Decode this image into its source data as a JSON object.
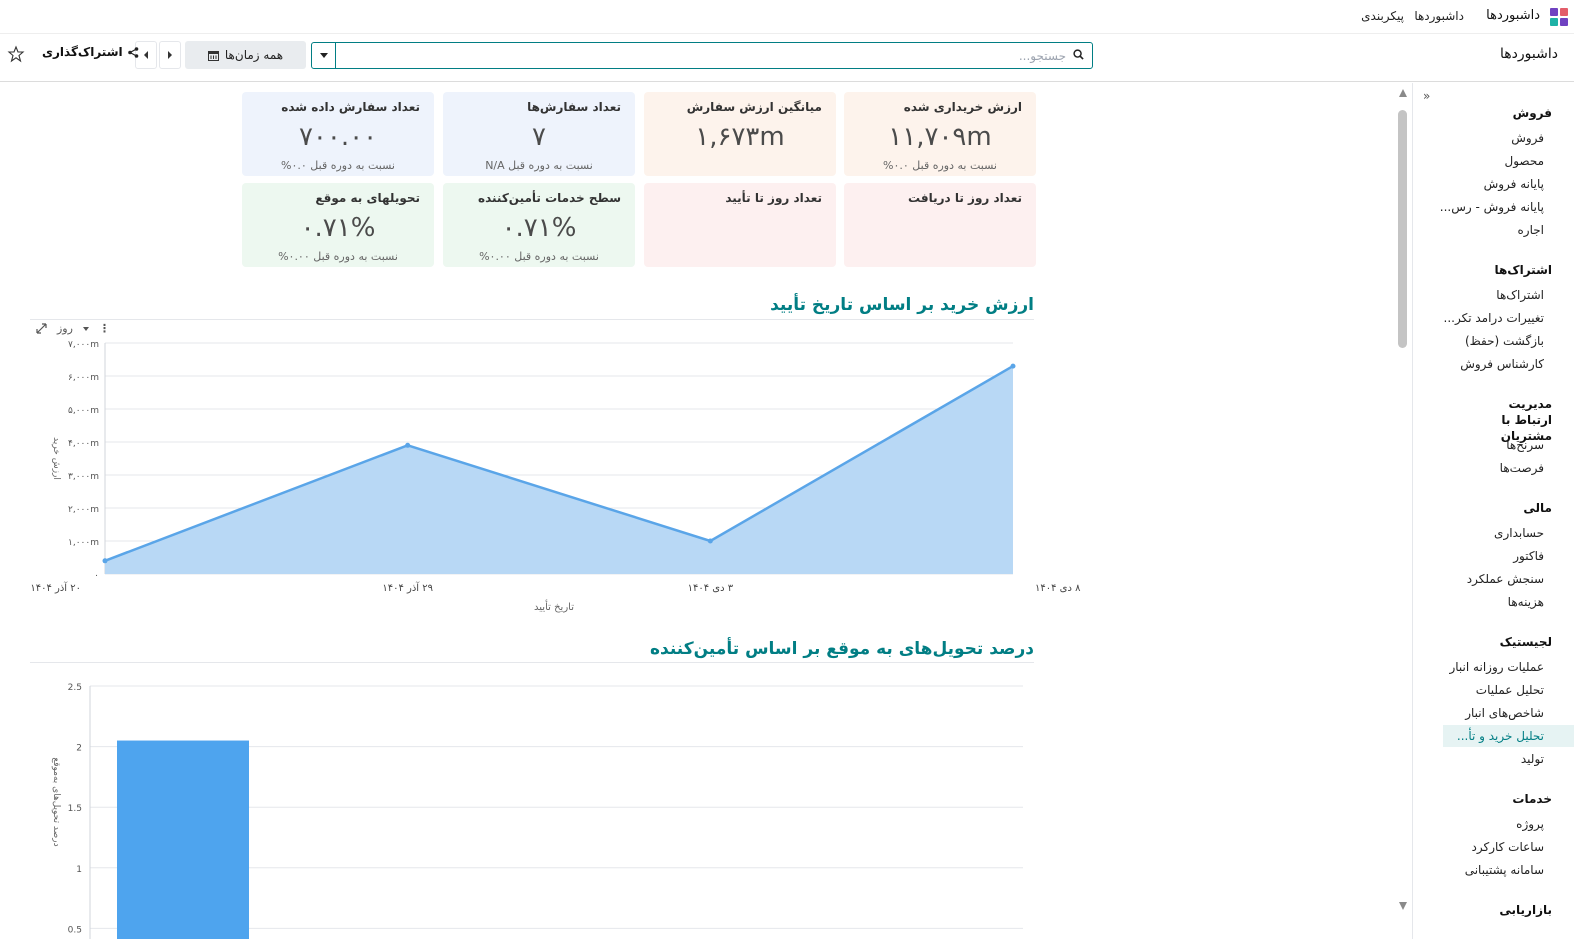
{
  "topnav": {
    "brand": "داشبوردها",
    "links": [
      "داشبوردها",
      "پیکربندی"
    ]
  },
  "controlbar": {
    "title": "داشبوردها",
    "search_placeholder": "جستجو...",
    "date_filter": "همه زمان‌ها",
    "share_label": "اشتراک‌گذاری"
  },
  "kpis": [
    {
      "title": "ارزش خریداری شده",
      "value": "۱۱,۷۰۹m",
      "sub": "نسبت به دوره قبل ۰.۰%",
      "color": "#fdf3ec"
    },
    {
      "title": "میانگین ارزش سفارش",
      "value": "۱,۶۷۳m",
      "sub": "",
      "color": "#fdf3ec"
    },
    {
      "title": "تعداد سفارش‌ها",
      "value": "۷",
      "sub": "نسبت به دوره قبل N/A",
      "color": "#eef3fc"
    },
    {
      "title": "تعداد سفارش داده شده",
      "value": "۷۰۰.۰۰",
      "sub": "نسبت به دوره قبل ۰.۰%",
      "color": "#eef3fc"
    },
    {
      "title": "تعداد روز تا دریافت",
      "value": "",
      "sub": "",
      "color": "#fdf0f0"
    },
    {
      "title": "تعداد روز تا تأیید",
      "value": "",
      "sub": "",
      "color": "#fdf0f0"
    },
    {
      "title": "سطح خدمات تأمین‌کننده",
      "value": "۰.۷۱%",
      "sub": "نسبت به دوره قبل ۰.۰۰%",
      "color": "#edf8f0"
    },
    {
      "title": "تحویلهای به موقع",
      "value": "۰.۷۱%",
      "sub": "نسبت به دوره قبل ۰.۰۰%",
      "color": "#edf8f0"
    }
  ],
  "sections": {
    "chart1_title": "ارزش خرید بر اساس تاریخ تأیید",
    "chart2_title": "درصد تحویل‌های به موقع بر اساس تأمین‌کننده",
    "chart1_tool_label": "روز"
  },
  "sidebar": {
    "groups": [
      {
        "label": "فروش",
        "items": [
          "فروش",
          "محصول",
          "پایانه فروش",
          "پایانه فروش - رس...",
          "اجاره"
        ]
      },
      {
        "label": "اشتراک‌ها",
        "items": [
          "اشتراک‌ها",
          "تغییرات درامد تکر...",
          "بازگشت (حفظ)",
          "کارشناس فروش"
        ]
      },
      {
        "label": "مدیریت ارتباط با مشتریان",
        "items": [
          "سرنخ‌ها",
          "فرصت‌ها"
        ]
      },
      {
        "label": "مالی",
        "items": [
          "حسابداری",
          "فاکتور",
          "سنجش عملکرد",
          "هزینه‌ها"
        ]
      },
      {
        "label": "لجیستیک",
        "items": [
          "عملیات روزانه انبار",
          "تحلیل عملیات",
          "شاخص‌های انبار",
          "تحلیل خرید و تأ...",
          "تولید"
        ]
      },
      {
        "label": "خدمات",
        "items": [
          "پروژه",
          "ساعات کارکرد",
          "سامانه پشتیبانی"
        ]
      },
      {
        "label": "بازاریابی",
        "items": []
      }
    ],
    "active_item": "تحلیل خرید و تأ..."
  },
  "chart_data": [
    {
      "type": "area",
      "title": "",
      "xlabel": "تاریخ تأیید",
      "ylabel": "ارزش خرید",
      "categories": [
        "۲۰ آذر ۱۴۰۴",
        "۲۹ آذر ۱۴۰۴",
        "۳ دی ۱۴۰۴",
        "۸ دی ۱۴۰۴"
      ],
      "values": [
        400,
        3900,
        1000,
        6300
      ],
      "yticks": [
        "۰",
        "۱,۰۰۰m",
        "۲,۰۰۰m",
        "۳,۰۰۰m",
        "۴,۰۰۰m",
        "۵,۰۰۰m",
        "۶,۰۰۰m",
        "۷,۰۰۰m"
      ],
      "ylim": [
        0,
        7000
      ],
      "grid": true,
      "color": "#5aa5e8",
      "fill": "#b8d8f5"
    },
    {
      "type": "bar",
      "title": "",
      "xlabel": "",
      "ylabel": "درصد تحویل‌های به‌موقع",
      "categories": [
        ""
      ],
      "values": [
        2.05
      ],
      "yticks": [
        "0.5",
        "1",
        "1.5",
        "2",
        "2.5"
      ],
      "ylim": [
        0,
        2.5
      ],
      "grid": true,
      "color": "#4ea4ee"
    }
  ]
}
